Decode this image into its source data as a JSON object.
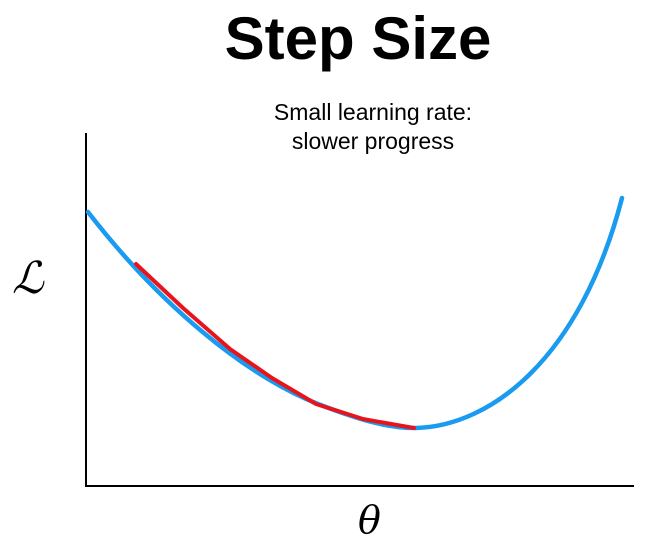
{
  "title": "Step Size",
  "subtitle": {
    "line1": "Small learning rate:",
    "line2": "slower progress"
  },
  "axes": {
    "ylabel": "ℒ",
    "xlabel": "θ"
  },
  "colors": {
    "loss_curve": "#1a9bf0",
    "step_path": "#e8141b",
    "axis": "#000000"
  }
}
